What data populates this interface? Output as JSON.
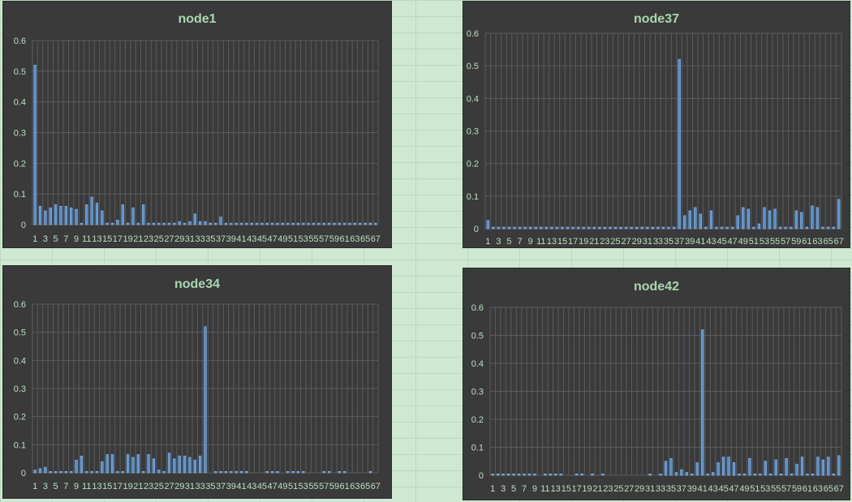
{
  "chart_data": [
    {
      "type": "bar",
      "title": "node1",
      "ylim": [
        0,
        0.6
      ],
      "yticks": [
        "0",
        "0.1",
        "0.2",
        "0.3",
        "0.4",
        "0.5",
        "0.6"
      ],
      "categories": [
        "1",
        "2",
        "3",
        "4",
        "5",
        "6",
        "7",
        "8",
        "9",
        "10",
        "11",
        "12",
        "13",
        "14",
        "15",
        "16",
        "17",
        "18",
        "19",
        "20",
        "21",
        "22",
        "23",
        "24",
        "25",
        "26",
        "27",
        "28",
        "29",
        "30",
        "31",
        "32",
        "33",
        "34",
        "35",
        "36",
        "37",
        "38",
        "39",
        "40",
        "41",
        "42",
        "43",
        "44",
        "45",
        "46",
        "47",
        "48",
        "49",
        "50",
        "51",
        "52",
        "53",
        "54",
        "55",
        "56",
        "57",
        "58",
        "59",
        "60",
        "61",
        "62",
        "63",
        "64",
        "65",
        "66",
        "67"
      ],
      "xtick_labels": [
        "1",
        "3",
        "5",
        "7",
        "9",
        "11",
        "13",
        "15",
        "17",
        "19",
        "21",
        "23",
        "25",
        "27",
        "29",
        "31",
        "33",
        "35",
        "37",
        "39",
        "41",
        "43",
        "45",
        "47",
        "49",
        "51",
        "53",
        "55",
        "57",
        "59",
        "61",
        "63",
        "65",
        "67"
      ],
      "values": [
        0.52,
        0.06,
        0.045,
        0.055,
        0.065,
        0.06,
        0.06,
        0.055,
        0.05,
        0.005,
        0.065,
        0.09,
        0.07,
        0.045,
        0.005,
        0.005,
        0.015,
        0.065,
        0.005,
        0.055,
        0.005,
        0.065,
        0.005,
        0.005,
        0.005,
        0.005,
        0.005,
        0.005,
        0.01,
        0.005,
        0.01,
        0.035,
        0.01,
        0.01,
        0.005,
        0.005,
        0.025,
        0.005,
        0.005,
        0.005,
        0.005,
        0.005,
        0.005,
        0.005,
        0.005,
        0.005,
        0.005,
        0.005,
        0.005,
        0.005,
        0.005,
        0.005,
        0.005,
        0.005,
        0.005,
        0.005,
        0.005,
        0.005,
        0.005,
        0.005,
        0.005,
        0.005,
        0.005,
        0.005,
        0.005,
        0.005,
        0.005
      ],
      "grid": true
    },
    {
      "type": "bar",
      "title": "node37",
      "ylim": [
        0,
        0.6
      ],
      "yticks": [
        "0",
        "0.1",
        "0.2",
        "0.3",
        "0.4",
        "0.5",
        "0.6"
      ],
      "categories": [
        "1",
        "2",
        "3",
        "4",
        "5",
        "6",
        "7",
        "8",
        "9",
        "10",
        "11",
        "12",
        "13",
        "14",
        "15",
        "16",
        "17",
        "18",
        "19",
        "20",
        "21",
        "22",
        "23",
        "24",
        "25",
        "26",
        "27",
        "28",
        "29",
        "30",
        "31",
        "32",
        "33",
        "34",
        "35",
        "36",
        "37",
        "38",
        "39",
        "40",
        "41",
        "42",
        "43",
        "44",
        "45",
        "46",
        "47",
        "48",
        "49",
        "50",
        "51",
        "52",
        "53",
        "54",
        "55",
        "56",
        "57",
        "58",
        "59",
        "60",
        "61",
        "62",
        "63",
        "64",
        "65",
        "66",
        "67"
      ],
      "xtick_labels": [
        "1",
        "3",
        "5",
        "7",
        "9",
        "11",
        "13",
        "15",
        "17",
        "19",
        "21",
        "23",
        "25",
        "27",
        "29",
        "31",
        "33",
        "35",
        "37",
        "39",
        "41",
        "43",
        "45",
        "47",
        "49",
        "51",
        "53",
        "55",
        "57",
        "59",
        "61",
        "63",
        "65",
        "67"
      ],
      "values": [
        0.025,
        0.005,
        0.005,
        0.005,
        0.005,
        0.005,
        0.005,
        0.005,
        0.005,
        0.005,
        0.005,
        0.005,
        0.005,
        0.005,
        0.005,
        0.005,
        0.005,
        0.005,
        0.005,
        0.005,
        0.005,
        0.005,
        0.005,
        0.005,
        0.005,
        0.005,
        0.005,
        0.005,
        0.005,
        0.005,
        0.005,
        0.005,
        0.005,
        0.005,
        0.005,
        0.005,
        0.52,
        0.04,
        0.055,
        0.065,
        0.045,
        0.005,
        0.055,
        0.005,
        0.005,
        0.005,
        0.005,
        0.04,
        0.065,
        0.06,
        0.005,
        0.015,
        0.065,
        0.055,
        0.06,
        0.005,
        0.005,
        0.005,
        0.055,
        0.05,
        0.005,
        0.07,
        0.065,
        0.005,
        0.005,
        0.005,
        0.09
      ],
      "grid": true
    },
    {
      "type": "bar",
      "title": "node34",
      "ylim": [
        0,
        0.6
      ],
      "yticks": [
        "0",
        "0.1",
        "0.2",
        "0.3",
        "0.4",
        "0.5",
        "0.6"
      ],
      "categories": [
        "1",
        "2",
        "3",
        "4",
        "5",
        "6",
        "7",
        "8",
        "9",
        "10",
        "11",
        "12",
        "13",
        "14",
        "15",
        "16",
        "17",
        "18",
        "19",
        "20",
        "21",
        "22",
        "23",
        "24",
        "25",
        "26",
        "27",
        "28",
        "29",
        "30",
        "31",
        "32",
        "33",
        "34",
        "35",
        "36",
        "37",
        "38",
        "39",
        "40",
        "41",
        "42",
        "43",
        "44",
        "45",
        "46",
        "47",
        "48",
        "49",
        "50",
        "51",
        "52",
        "53",
        "54",
        "55",
        "56",
        "57",
        "58",
        "59",
        "60",
        "61",
        "62",
        "63",
        "64",
        "65",
        "66",
        "67"
      ],
      "xtick_labels": [
        "1",
        "3",
        "5",
        "7",
        "9",
        "11",
        "13",
        "15",
        "17",
        "19",
        "21",
        "23",
        "25",
        "27",
        "29",
        "31",
        "33",
        "35",
        "37",
        "39",
        "41",
        "43",
        "45",
        "47",
        "49",
        "51",
        "53",
        "55",
        "57",
        "59",
        "61",
        "63",
        "65",
        "67"
      ],
      "values": [
        0.01,
        0.015,
        0.02,
        0.005,
        0.005,
        0.005,
        0.005,
        0.005,
        0.045,
        0.06,
        0.005,
        0.005,
        0.005,
        0.04,
        0.065,
        0.065,
        0.005,
        0.005,
        0.065,
        0.055,
        0.065,
        0.005,
        0.065,
        0.05,
        0.01,
        0.005,
        0.07,
        0.05,
        0.06,
        0.06,
        0.055,
        0.045,
        0.06,
        0.52,
        0,
        0.005,
        0.005,
        0.005,
        0.005,
        0.005,
        0.005,
        0.005,
        0,
        0,
        0,
        0.005,
        0.005,
        0.005,
        0,
        0.005,
        0.005,
        0.005,
        0.005,
        0,
        0,
        0,
        0.005,
        0.005,
        0,
        0.005,
        0.005,
        0,
        0,
        0,
        0,
        0.005,
        0
      ],
      "grid": true
    },
    {
      "type": "bar",
      "title": "node42",
      "ylim": [
        0,
        0.6
      ],
      "yticks": [
        "0",
        "0.1",
        "0.2",
        "0.3",
        "0.4",
        "0.5",
        "0.6"
      ],
      "categories": [
        "1",
        "2",
        "3",
        "4",
        "5",
        "6",
        "7",
        "8",
        "9",
        "10",
        "11",
        "12",
        "13",
        "14",
        "15",
        "16",
        "17",
        "18",
        "19",
        "20",
        "21",
        "22",
        "23",
        "24",
        "25",
        "26",
        "27",
        "28",
        "29",
        "30",
        "31",
        "32",
        "33",
        "34",
        "35",
        "36",
        "37",
        "38",
        "39",
        "40",
        "41",
        "42",
        "43",
        "44",
        "45",
        "46",
        "47",
        "48",
        "49",
        "50",
        "51",
        "52",
        "53",
        "54",
        "55",
        "56",
        "57",
        "58",
        "59",
        "60",
        "61",
        "62",
        "63",
        "64",
        "65",
        "66",
        "67"
      ],
      "xtick_labels": [
        "1",
        "3",
        "5",
        "7",
        "9",
        "11",
        "13",
        "15",
        "17",
        "19",
        "21",
        "23",
        "25",
        "27",
        "29",
        "31",
        "33",
        "35",
        "37",
        "39",
        "41",
        "43",
        "45",
        "47",
        "49",
        "51",
        "53",
        "55",
        "57",
        "59",
        "61",
        "63",
        "65",
        "67"
      ],
      "values": [
        0.005,
        0.005,
        0.005,
        0.005,
        0.005,
        0.005,
        0.005,
        0.005,
        0.005,
        0,
        0.005,
        0.005,
        0.005,
        0.005,
        0,
        0,
        0.005,
        0.005,
        0,
        0.005,
        0,
        0.005,
        0,
        0,
        0,
        0,
        0,
        0,
        0,
        0,
        0.005,
        0,
        0.005,
        0.05,
        0.06,
        0.01,
        0.02,
        0.01,
        0.005,
        0.045,
        0.52,
        0.005,
        0.01,
        0.045,
        0.065,
        0.065,
        0.045,
        0.005,
        0.005,
        0.06,
        0.005,
        0.005,
        0.05,
        0.005,
        0.055,
        0.005,
        0.06,
        0.005,
        0.04,
        0.065,
        0.005,
        0.005,
        0.065,
        0.055,
        0.065,
        0.005,
        0.07
      ],
      "grid": true
    }
  ]
}
